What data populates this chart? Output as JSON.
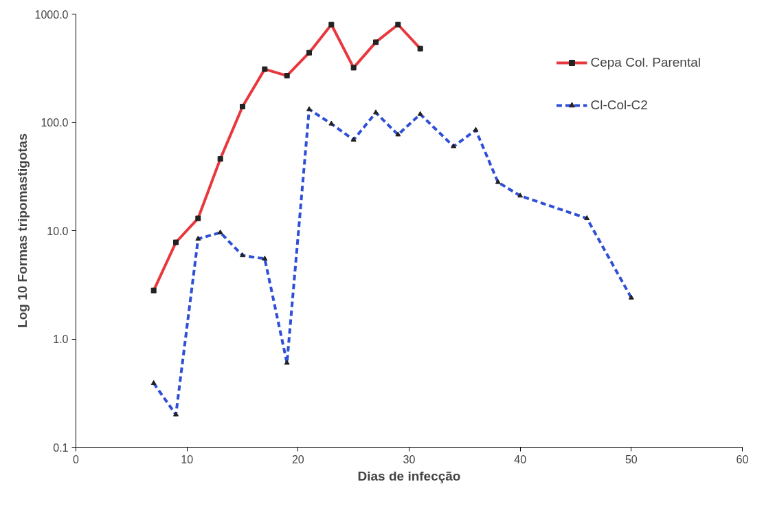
{
  "chart_data": {
    "type": "line",
    "xlabel": "Dias de infecção",
    "ylabel": "Log 10 Formas tripomastigotas",
    "log": "y",
    "grid": false,
    "legend": "top right",
    "xlim": [
      0,
      60
    ],
    "xticks": [
      0,
      10,
      20,
      30,
      40,
      50,
      60
    ],
    "ylim": [
      0.1,
      1000
    ],
    "yticks": [
      {
        "value": 0.1,
        "label": "0.1"
      },
      {
        "value": 1,
        "label": "1.0"
      },
      {
        "value": 10,
        "label": "10.0"
      },
      {
        "value": 100,
        "label": "100.0"
      },
      {
        "value": 1000,
        "label": "1000.0"
      }
    ],
    "series": [
      {
        "name": "Cepa Col. Parental",
        "color": "#e8383d",
        "marker": "square",
        "line_style": "solid",
        "x": [
          7,
          9,
          11,
          13,
          15,
          17,
          19,
          21,
          23,
          25,
          27,
          29,
          31
        ],
        "values": [
          2.8,
          7.8,
          13,
          46,
          140,
          310,
          270,
          440,
          800,
          320,
          550,
          800,
          480
        ]
      },
      {
        "name": "Cl-Col-C2",
        "color": "#2e4fd6",
        "marker": "triangle",
        "line_style": "dashed",
        "x": [
          7,
          9,
          11,
          13,
          15,
          17,
          19,
          21,
          23,
          25,
          27,
          29,
          31,
          34,
          36,
          38,
          40,
          46,
          50
        ],
        "values": [
          0.39,
          0.2,
          8.4,
          9.6,
          5.9,
          5.5,
          0.6,
          132,
          97,
          69,
          123,
          77,
          119,
          60,
          85,
          28,
          21,
          13,
          2.4
        ]
      }
    ]
  }
}
